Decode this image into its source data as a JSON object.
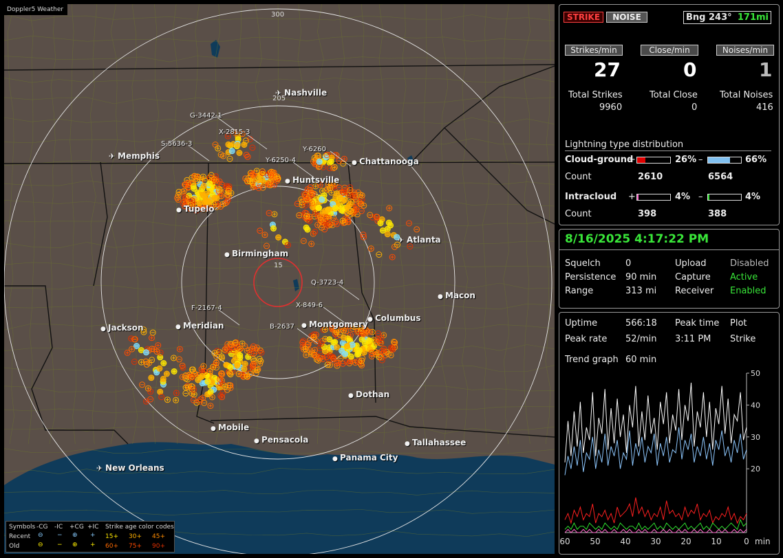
{
  "map": {
    "title": "Doppler5 Weather",
    "ring_labels": [
      "300",
      "205",
      "15"
    ],
    "cities": [
      {
        "name": "Nashville",
        "airport": true
      },
      {
        "name": "Memphis",
        "airport": true
      },
      {
        "name": "Chattanooga",
        "airport": false
      },
      {
        "name": "Huntsville",
        "airport": false
      },
      {
        "name": "Tupelo",
        "airport": false
      },
      {
        "name": "Atlanta",
        "airport": true
      },
      {
        "name": "Birmingham",
        "airport": false
      },
      {
        "name": "Macon",
        "airport": false
      },
      {
        "name": "Jackson",
        "airport": false
      },
      {
        "name": "Meridian",
        "airport": false
      },
      {
        "name": "Montgomery",
        "airport": false
      },
      {
        "name": "Columbus",
        "airport": false
      },
      {
        "name": "Dothan",
        "airport": false
      },
      {
        "name": "Mobile",
        "airport": false
      },
      {
        "name": "Pensacola",
        "airport": false
      },
      {
        "name": "Tallahassee",
        "airport": false
      },
      {
        "name": "Panama City",
        "airport": false
      },
      {
        "name": "New Orleans",
        "airport": true
      }
    ],
    "storm_tracks": [
      "G-3442-1",
      "X-2815-3",
      "S-5636-3",
      "Y-6260",
      "Y-6250-4",
      "Q-3723-4",
      "X-849-6",
      "F-2167-4",
      "B-2637"
    ],
    "legend": {
      "symbols_label": "Symbols",
      "col_minus_cg": "-CG",
      "col_minus_ic": "-IC",
      "col_plus_cg": "+CG",
      "col_plus_ic": "+IC",
      "age_label": "Strike age color codes",
      "recent_label": "Recent",
      "old_label": "Old",
      "recent_ages": [
        "15+",
        "30+",
        "45+"
      ],
      "old_ages": [
        "60+",
        "75+",
        "90+"
      ],
      "age_colors": [
        "#ffe800",
        "#ffb000",
        "#ff8c00",
        "#ff6a00",
        "#ff4a00",
        "#e03000"
      ]
    }
  },
  "status": {
    "strike_button": "STRIKE",
    "noise_button": "NOISE",
    "bearing": "Bng 243°",
    "distance": "171mi",
    "strikes_per_min_label": "Strikes/min",
    "close_per_min_label": "Close/min",
    "noises_per_min_label": "Noises/min",
    "strikes_per_min": "27",
    "close_per_min": "0",
    "noises_per_min": "1",
    "total_strikes_label": "Total Strikes",
    "total_close_label": "Total Close",
    "total_noises_label": "Total Noises",
    "total_strikes": "9960",
    "total_close": "0",
    "total_noises": "416",
    "dist_title": "Lightning type distribution",
    "cg_label": "Cloud-ground",
    "ic_label": "Intracloud",
    "plus_sign": "+",
    "minus_sign": "–",
    "count_label": "Count",
    "cg_plus_pct": "26%",
    "cg_minus_pct": "66%",
    "cg_plus_count": "2610",
    "cg_minus_count": "6564",
    "ic_plus_pct": "4%",
    "ic_minus_pct": "4%",
    "ic_plus_count": "398",
    "ic_minus_count": "388",
    "cg_plus_frac": 0.26,
    "cg_minus_frac": 0.66,
    "ic_plus_frac": 0.04,
    "ic_minus_frac": 0.04
  },
  "settings": {
    "datetime": "8/16/2025 4:17:22 PM",
    "squelch_label": "Squelch",
    "squelch": "0",
    "persistence_label": "Persistence",
    "persistence": "90 min",
    "range_label": "Range",
    "range": "313 mi",
    "upload_label": "Upload",
    "upload": "Disabled",
    "capture_label": "Capture",
    "capture": "Active",
    "receiver_label": "Receiver",
    "receiver": "Enabled"
  },
  "stats": {
    "uptime_label": "Uptime",
    "uptime": "566:18",
    "peak_time_label": "Peak time",
    "peak_time": "3:11 PM",
    "plot_label": "Plot",
    "plot": "Strike",
    "peak_rate_label": "Peak rate",
    "peak_rate": "52/min",
    "trend_label": "Trend graph",
    "trend": "60 min"
  },
  "chart_data": {
    "type": "line",
    "x_ticks": [
      "60",
      "50",
      "40",
      "30",
      "20",
      "10",
      "0"
    ],
    "x_unit": "min",
    "y_ticks": [
      "50",
      "40",
      "30",
      "20"
    ],
    "ylim": [
      0,
      50
    ],
    "series": [
      {
        "color": "#ffffff",
        "values": [
          22,
          35,
          24,
          38,
          27,
          41,
          25,
          33,
          29,
          44,
          24,
          36,
          31,
          45,
          26,
          39,
          28,
          42,
          30,
          37,
          25,
          40,
          33,
          46,
          27,
          38,
          29,
          43,
          31,
          36,
          26,
          41,
          34,
          44,
          28,
          37,
          32,
          45,
          29,
          40,
          35,
          47,
          27,
          38,
          33,
          44,
          30,
          41,
          26,
          39,
          34,
          46,
          31,
          42,
          28,
          37,
          35,
          44,
          29,
          33
        ]
      },
      {
        "color": "#8ec8ff",
        "values": [
          18,
          24,
          20,
          27,
          21,
          29,
          19,
          25,
          23,
          30,
          20,
          26,
          22,
          31,
          21,
          27,
          24,
          29,
          20,
          25,
          23,
          32,
          21,
          28,
          24,
          30,
          22,
          27,
          25,
          31,
          21,
          28,
          24,
          30,
          22,
          26,
          25,
          33,
          23,
          29,
          26,
          31,
          22,
          27,
          24,
          30,
          23,
          28,
          21,
          29,
          26,
          32,
          24,
          27,
          22,
          29,
          25,
          31,
          23,
          26
        ]
      },
      {
        "color": "#ff2020",
        "values": [
          4,
          6,
          3,
          7,
          5,
          8,
          4,
          6,
          5,
          9,
          3,
          6,
          5,
          7,
          4,
          6,
          3,
          8,
          5,
          6,
          7,
          9,
          5,
          11,
          6,
          8,
          5,
          7,
          4,
          6,
          5,
          8,
          4,
          10,
          6,
          7,
          5,
          6,
          4,
          8,
          5,
          7,
          6,
          9,
          4,
          6,
          5,
          7,
          3,
          5,
          4,
          6,
          5,
          8,
          4,
          6,
          3,
          5,
          4,
          6
        ]
      },
      {
        "color": "#30e030",
        "values": [
          1,
          2,
          1,
          3,
          1,
          2,
          2,
          1,
          3,
          2,
          1,
          2,
          1,
          3,
          2,
          1,
          2,
          1,
          3,
          2,
          1,
          2,
          2,
          1,
          3,
          1,
          2,
          1,
          2,
          3,
          1,
          2,
          1,
          3,
          2,
          1,
          2,
          1,
          2,
          3,
          1,
          2,
          1,
          2,
          3,
          1,
          2,
          1,
          3,
          2,
          1,
          2,
          1,
          2,
          3,
          2,
          1,
          4,
          2,
          3
        ]
      },
      {
        "color": "#ff66cc",
        "values": [
          0,
          1,
          0,
          1,
          0,
          0,
          1,
          0,
          1,
          0,
          0,
          1,
          0,
          1,
          0,
          0,
          1,
          0,
          0,
          1,
          0,
          1,
          0,
          0,
          1,
          0,
          1,
          0,
          0,
          1,
          0,
          0,
          1,
          0,
          1,
          0,
          0,
          1,
          0,
          1,
          0,
          0,
          1,
          0,
          1,
          0,
          0,
          1,
          0,
          0,
          1,
          0,
          1,
          0,
          0,
          1,
          0,
          1,
          0,
          1
        ]
      }
    ]
  }
}
